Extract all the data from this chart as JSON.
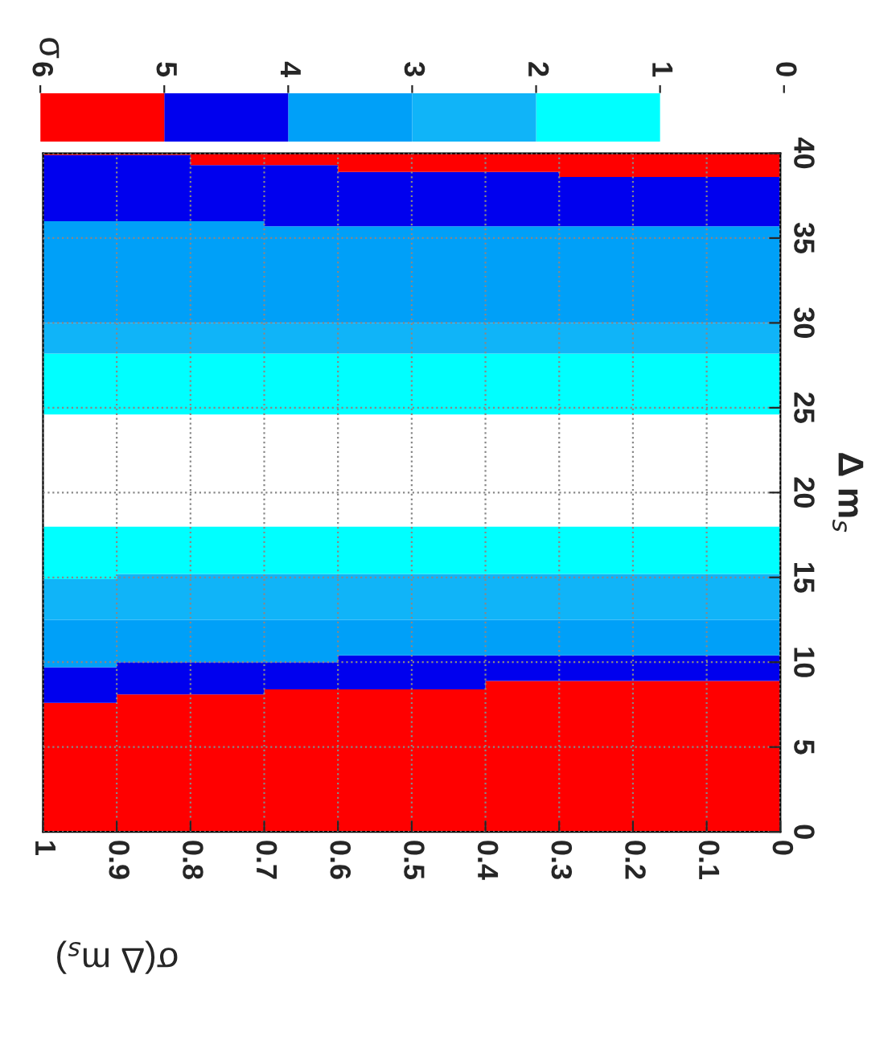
{
  "chart_data": {
    "type": "area",
    "stacked": true,
    "xlabel": "σ(Δ m$_{s}$)",
    "ylabel": "Δ m$_{s}$",
    "clabel": "σ",
    "x": [
      1,
      0.9,
      0.8,
      0.7,
      0.6,
      0.5,
      0.4,
      0.3,
      0.2,
      0.1,
      0
    ],
    "xlim": [
      1,
      0
    ],
    "xticks": [
      1,
      0.9,
      0.8,
      0.7,
      0.6,
      0.5,
      0.4,
      0.3,
      0.2,
      0.1,
      0
    ],
    "ylim": [
      0,
      40
    ],
    "yticks": [
      0,
      5,
      10,
      15,
      20,
      25,
      30,
      35,
      40
    ],
    "clim": [
      0,
      6
    ],
    "cticks": [
      0,
      1,
      2,
      3,
      4,
      5,
      6
    ],
    "colors": [
      "#ffffff",
      "#00ffff",
      "#10b4f8",
      "#00a0f8",
      "#0000ee",
      "#ff0000"
    ],
    "grid": true,
    "series": [
      {
        "color": "#ff0000",
        "values": [
          7.6,
          8.1,
          8.1,
          8.4,
          8.4,
          8.4,
          8.9,
          8.9,
          8.9,
          8.9,
          8.9
        ]
      },
      {
        "color": "#0000ee",
        "values": [
          2.1,
          1.9,
          1.9,
          1.6,
          2.0,
          2.0,
          1.5,
          1.5,
          1.5,
          1.5,
          1.5
        ]
      },
      {
        "color": "#00a0f8",
        "values": [
          2.8,
          2.5,
          2.5,
          2.5,
          2.1,
          2.1,
          2.1,
          2.1,
          2.1,
          2.1,
          2.1
        ]
      },
      {
        "color": "#10b4f8",
        "values": [
          2.4,
          2.7,
          2.7,
          2.7,
          2.7,
          2.7,
          2.7,
          2.7,
          2.7,
          2.7,
          2.7
        ]
      },
      {
        "color": "#00ffff",
        "values": [
          3.1,
          2.8,
          2.8,
          2.8,
          2.8,
          2.8,
          2.8,
          2.8,
          2.8,
          2.8,
          2.8
        ]
      },
      {
        "color": "#ffffff",
        "values": [
          6.6,
          6.6,
          6.6,
          6.6,
          6.6,
          6.6,
          6.6,
          6.6,
          6.6,
          6.6,
          6.6
        ]
      },
      {
        "color": "#00ffff",
        "values": [
          3.6,
          3.6,
          3.6,
          3.6,
          3.6,
          3.6,
          3.6,
          3.6,
          3.6,
          3.6,
          3.6
        ]
      },
      {
        "color": "#10b4f8",
        "values": [
          1.8,
          1.8,
          1.8,
          1.8,
          1.8,
          1.8,
          1.8,
          1.8,
          1.8,
          1.8,
          1.8
        ]
      },
      {
        "color": "#00a0f8",
        "values": [
          6.0,
          6.0,
          6.0,
          5.7,
          5.7,
          5.7,
          5.7,
          5.7,
          5.7,
          5.7,
          5.7
        ]
      },
      {
        "color": "#0000ee",
        "values": [
          3.9,
          3.9,
          3.3,
          3.6,
          3.2,
          3.2,
          3.2,
          2.9,
          2.9,
          2.9,
          2.9
        ]
      },
      {
        "color": "#ff0000",
        "values": [
          0.1,
          0.1,
          0.7,
          0.7,
          1.1,
          1.1,
          1.1,
          1.4,
          1.4,
          1.4,
          1.4
        ]
      }
    ]
  }
}
